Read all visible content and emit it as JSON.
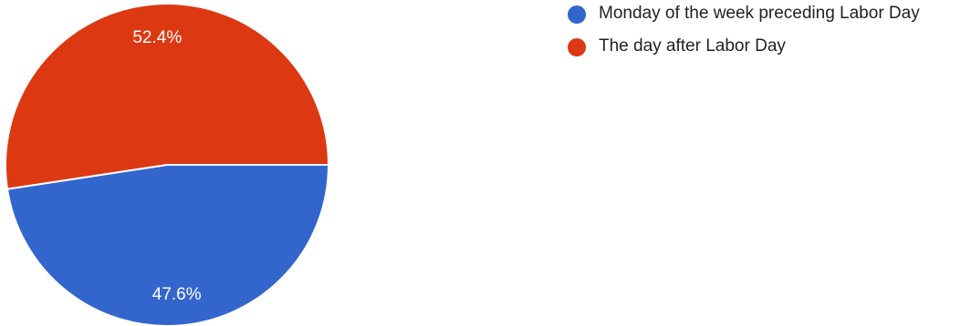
{
  "chart_data": {
    "type": "pie",
    "slices": [
      {
        "label": "Monday of the week preceding Labor Day",
        "value": 47.6,
        "value_label": "47.6%",
        "color": "#3366cc"
      },
      {
        "label": "The day after Labor Day",
        "value": 52.4,
        "value_label": "52.4%",
        "color": "#dc3912"
      }
    ],
    "legend_position": "right"
  }
}
